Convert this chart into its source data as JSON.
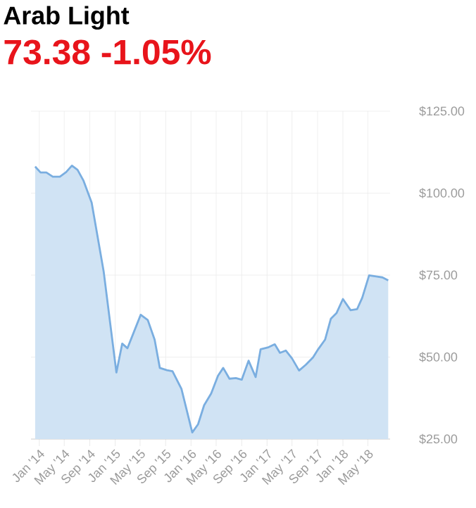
{
  "chart_data": {
    "type": "area",
    "title": "Arab Light",
    "subtitle": "73.38 -1.05%",
    "x": [
      "2013-12-12",
      "2014-01-07",
      "2014-02-04",
      "2014-03-07",
      "2014-04-10",
      "2014-05-10",
      "2014-06-07",
      "2014-07-04",
      "2014-08-01",
      "2014-09-10",
      "2014-11-07",
      "2015-01-07",
      "2015-02-04",
      "2015-03-01",
      "2015-05-04",
      "2015-06-07",
      "2015-07-10",
      "2015-08-04",
      "2015-09-07",
      "2015-10-04",
      "2015-11-16",
      "2016-01-07",
      "2016-02-04",
      "2016-03-04",
      "2016-04-07",
      "2016-05-10",
      "2016-06-04",
      "2016-07-04",
      "2016-08-04",
      "2016-09-01",
      "2016-10-04",
      "2016-11-07",
      "2016-12-01",
      "2017-01-04",
      "2017-02-07",
      "2017-03-04",
      "2017-04-01",
      "2017-05-01",
      "2017-06-04",
      "2017-07-07",
      "2017-08-10",
      "2017-09-04",
      "2017-10-07",
      "2017-11-04",
      "2017-12-01",
      "2018-01-01",
      "2018-02-07",
      "2018-03-10",
      "2018-04-04",
      "2018-05-07",
      "2018-06-10",
      "2018-07-10",
      "2018-08-07"
    ],
    "series": [
      {
        "color": "#7aaee0",
        "values": [
          108.1,
          106.3,
          106.3,
          105,
          105,
          106.4,
          108.4,
          107.1,
          103.9,
          97.1,
          76,
          45.3,
          54.1,
          52.7,
          62.9,
          61.3,
          55.3,
          46.7,
          46,
          45.7,
          40.3,
          27,
          29.5,
          35.3,
          38.9,
          44.3,
          46.7,
          43.4,
          43.6,
          43.1,
          48.9,
          43.9,
          52.4,
          52.9,
          53.9,
          51.3,
          52,
          49.6,
          45.9,
          47.7,
          49.9,
          52.4,
          55.3,
          61.7,
          63.4,
          67.7,
          64.3,
          64.6,
          68.1,
          74.9,
          74.6,
          74.3,
          73.4
        ]
      }
    ],
    "xlim": [
      "2013-11-22",
      "2018-08-16"
    ],
    "xticks": [
      {
        "value": "2014-01-01",
        "label": "Jan '14"
      },
      {
        "value": "2014-05-01",
        "label": "May '14"
      },
      {
        "value": "2014-09-01",
        "label": "Sep '14"
      },
      {
        "value": "2015-01-01",
        "label": "Jan '15"
      },
      {
        "value": "2015-05-01",
        "label": "May '15"
      },
      {
        "value": "2015-09-01",
        "label": "Sep '15"
      },
      {
        "value": "2016-01-01",
        "label": "Jan '16"
      },
      {
        "value": "2016-05-01",
        "label": "May '16"
      },
      {
        "value": "2016-09-01",
        "label": "Sep '16"
      },
      {
        "value": "2017-01-01",
        "label": "Jan '17"
      },
      {
        "value": "2017-05-01",
        "label": "May '17"
      },
      {
        "value": "2017-09-01",
        "label": "Sep '17"
      },
      {
        "value": "2018-01-01",
        "label": "Jan '18"
      },
      {
        "value": "2018-05-01",
        "label": "May '18"
      }
    ],
    "ylim": [
      25,
      125
    ],
    "yticks": [
      {
        "value": 25,
        "label": "$25.00"
      },
      {
        "value": 50,
        "label": "$50.00"
      },
      {
        "value": 75,
        "label": "$75.00"
      },
      {
        "value": 100,
        "label": "$100.00"
      },
      {
        "value": 125,
        "label": "$125.00"
      }
    ],
    "grid": true
  }
}
